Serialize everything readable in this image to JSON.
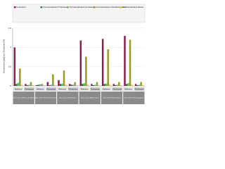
{
  "chart_data": {
    "type": "bar",
    "y_label": "Konzentration [mg/l] bzw. Erstabstand [%]",
    "categories": [
      "Referenz",
      "Rohwasser",
      "Referenz",
      "Rohwasser",
      "Referenz",
      "Rohwasser",
      "Referenz",
      "Rohwasser",
      "Referenz",
      "Rohwasser",
      "Referenz",
      "Rohwasser"
    ],
    "groups": [
      "Messstelle 1 Rheinische Bucht",
      "Messstelle 2 Rheinische Bucht",
      "Messstelle 3 Niederrhein",
      "Messstelle 4 Münsterland",
      "Messstelle 5 Münsterland",
      "Messstelle 6 Weserbergland"
    ],
    "series": [
      {
        "name": "Ist-Zustand",
        "color": "#8c1d4f",
        "values": [
          1.0,
          0.05,
          0.02,
          0.1,
          0.15,
          0.05,
          1.18,
          0.05,
          1.22,
          0.05,
          1.3,
          0.05
        ]
      },
      {
        "name": "Grenzwertabstand Trinkwasser",
        "color": "#1f7a3a",
        "values": [
          0.05,
          0.02,
          0.03,
          0.02,
          0.05,
          0.03,
          0.05,
          0.02,
          0.05,
          0.02,
          0.05,
          0.02
        ]
      },
      {
        "name": "Grenzwertabstand Grundwasser",
        "color": "#5fbf4f",
        "values": [
          0.08,
          0.03,
          0.04,
          0.03,
          0.06,
          0.03,
          0.07,
          0.03,
          0.06,
          0.03,
          0.07,
          0.03
        ]
      },
      {
        "name": "Grenzwertabstand Oberflächenwasser",
        "color": "#9a9a2a",
        "values": [
          0.45,
          0.1,
          0.05,
          0.3,
          0.4,
          0.1,
          0.76,
          0.1,
          0.95,
          0.1,
          1.2,
          0.1
        ]
      },
      {
        "name": "Grenzwertabstand Wasser",
        "color": "#e6c229",
        "values": [
          0.03,
          0.02,
          0.02,
          0.02,
          0.03,
          0.02,
          0.03,
          0.02,
          0.03,
          0.02,
          0.03,
          0.02
        ]
      }
    ],
    "ylim": [
      0,
      1.5
    ],
    "yticks": [
      0,
      0.5,
      1,
      1.5
    ],
    "grid": true
  }
}
